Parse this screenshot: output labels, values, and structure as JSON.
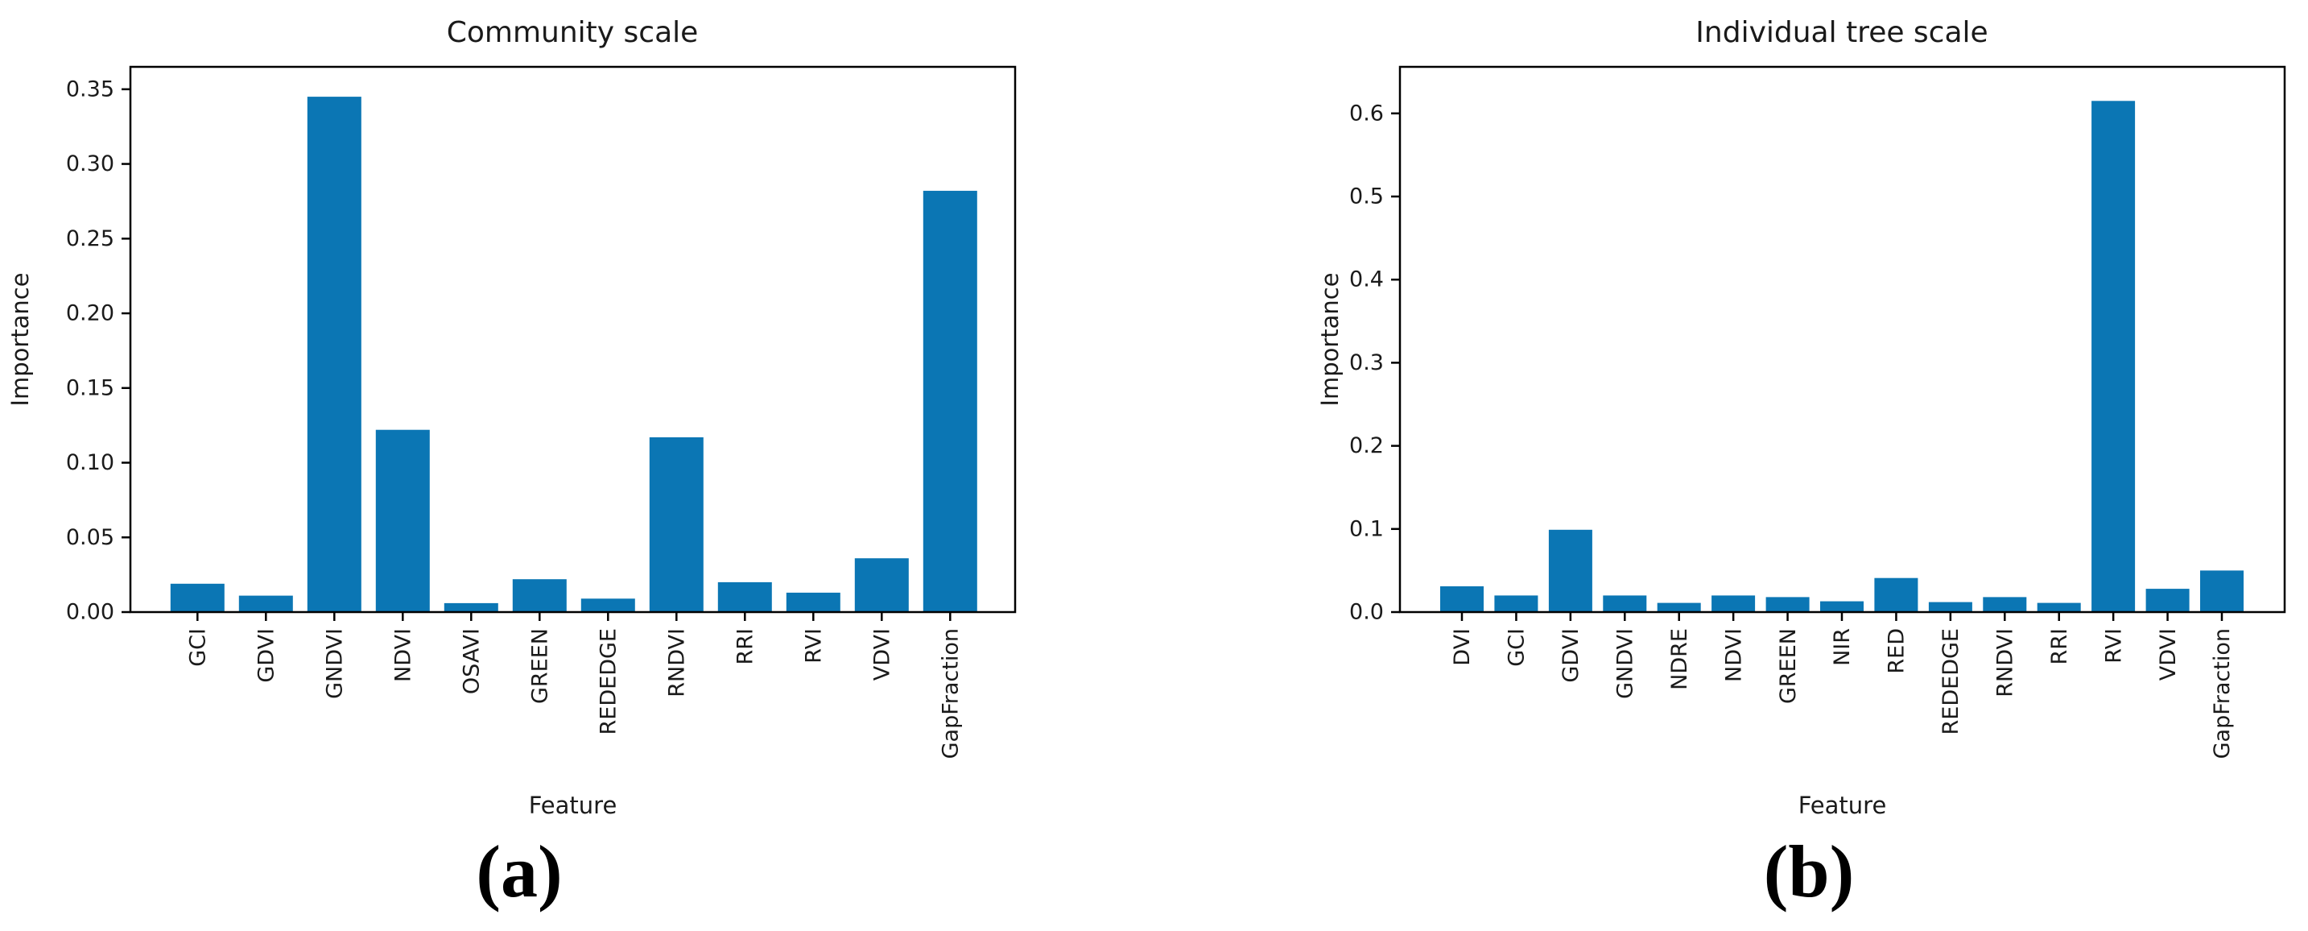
{
  "figure": {
    "captions": {
      "a": "(a)",
      "b": "(b)"
    }
  },
  "colors": {
    "bar": "#0b76b4",
    "axis": "#000000",
    "text": "#1a1a1a"
  },
  "chart_data": [
    {
      "type": "bar",
      "title": "Community scale",
      "xlabel": "Feature",
      "ylabel": "Importance",
      "categories": [
        "GCI",
        "GDVI",
        "GNDVI",
        "NDVI",
        "OSAVI",
        "GREEN",
        "REDEDGE",
        "RNDVI",
        "RRI",
        "RVI",
        "VDVI",
        "GapFraction"
      ],
      "values": [
        0.019,
        0.011,
        0.345,
        0.122,
        0.006,
        0.022,
        0.009,
        0.117,
        0.02,
        0.013,
        0.036,
        0.282
      ],
      "ylim": [
        0,
        0.365
      ],
      "yticks": [
        "0.00",
        "0.05",
        "0.10",
        "0.15",
        "0.20",
        "0.25",
        "0.30",
        "0.35"
      ],
      "grid": false,
      "legend": null,
      "caption": "(a)"
    },
    {
      "type": "bar",
      "title": "Individual tree scale",
      "xlabel": "Feature",
      "ylabel": "Importance",
      "categories": [
        "DVI",
        "GCI",
        "GDVI",
        "GNDVI",
        "NDRE",
        "NDVI",
        "GREEN",
        "NIR",
        "RED",
        "REDEDGE",
        "RNDVI",
        "RRI",
        "RVI",
        "VDVI",
        "GapFraction"
      ],
      "values": [
        0.031,
        0.02,
        0.099,
        0.02,
        0.011,
        0.02,
        0.018,
        0.013,
        0.041,
        0.012,
        0.018,
        0.011,
        0.615,
        0.028,
        0.05
      ],
      "ylim": [
        0,
        0.656
      ],
      "yticks": [
        "0.0",
        "0.1",
        "0.2",
        "0.3",
        "0.4",
        "0.5",
        "0.6"
      ],
      "grid": false,
      "legend": null,
      "caption": "(b)"
    }
  ]
}
